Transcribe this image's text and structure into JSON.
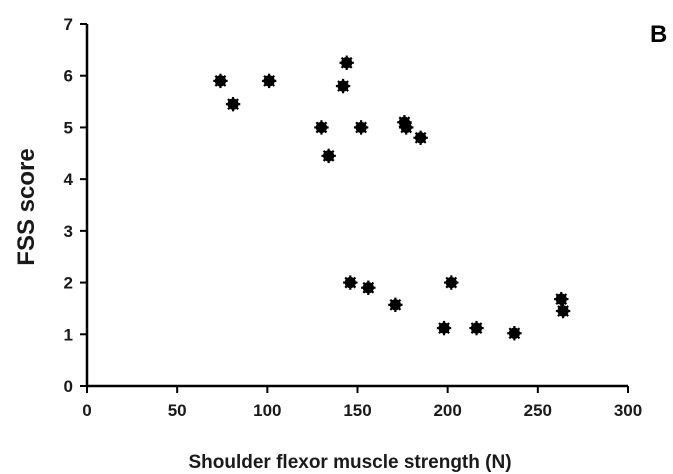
{
  "chart_data": {
    "type": "scatter",
    "panel_label": "B",
    "xlabel": "Shoulder flexor muscle strength (N)",
    "ylabel": "FSS score",
    "xlim": [
      0,
      300
    ],
    "ylim": [
      0,
      7
    ],
    "xticks": [
      0,
      50,
      100,
      150,
      200,
      250,
      300
    ],
    "yticks": [
      0,
      1,
      2,
      3,
      4,
      5,
      6,
      7
    ],
    "grid": false,
    "legend": "none",
    "marker_color": "#000000",
    "points": [
      {
        "x": 74,
        "y": 5.9
      },
      {
        "x": 81,
        "y": 5.45
      },
      {
        "x": 101,
        "y": 5.9
      },
      {
        "x": 130,
        "y": 5.0
      },
      {
        "x": 134,
        "y": 4.45
      },
      {
        "x": 142,
        "y": 5.8
      },
      {
        "x": 144,
        "y": 6.25
      },
      {
        "x": 152,
        "y": 5.0
      },
      {
        "x": 176,
        "y": 5.1
      },
      {
        "x": 177,
        "y": 5.0
      },
      {
        "x": 185,
        "y": 4.8
      },
      {
        "x": 146,
        "y": 2.0
      },
      {
        "x": 156,
        "y": 1.9
      },
      {
        "x": 171,
        "y": 1.57
      },
      {
        "x": 198,
        "y": 1.12
      },
      {
        "x": 202,
        "y": 2.0
      },
      {
        "x": 216,
        "y": 1.12
      },
      {
        "x": 237,
        "y": 1.02
      },
      {
        "x": 263,
        "y": 1.68
      },
      {
        "x": 264,
        "y": 1.45
      }
    ]
  }
}
